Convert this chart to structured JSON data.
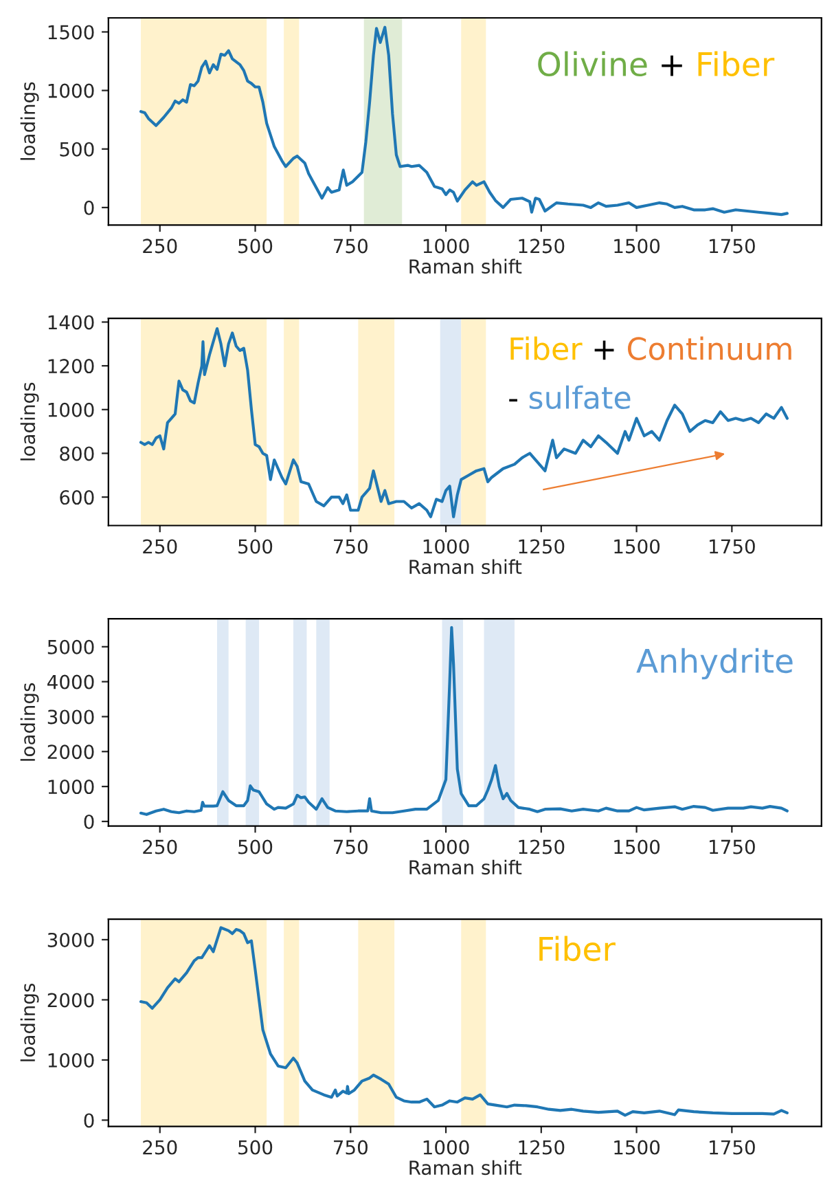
{
  "chart_data": [
    {
      "type": "line",
      "xlabel": "Raman shift",
      "ylabel": "loadings",
      "xlim": [
        115,
        1985
      ],
      "xticks": [
        250,
        500,
        750,
        1000,
        1250,
        1500,
        1750
      ],
      "ylim": [
        -150,
        1620
      ],
      "yticks": [
        0,
        500,
        1000,
        1500
      ],
      "grid": false,
      "legend": false,
      "annotations": [
        "Olivine",
        "+",
        "Fiber"
      ],
      "bands": [
        {
          "axis": "x",
          "from": 200,
          "to": 530,
          "color": "#fff2cc"
        },
        {
          "axis": "x",
          "from": 575,
          "to": 615,
          "color": "#fff2cc"
        },
        {
          "axis": "x",
          "from": 785,
          "to": 885,
          "color": "#e0ecd6"
        },
        {
          "axis": "x",
          "from": 1040,
          "to": 1105,
          "color": "#fff2cc"
        }
      ],
      "series": [
        {
          "color": "#1f77b4",
          "x": [
            200,
            210,
            220,
            240,
            260,
            280,
            290,
            300,
            310,
            320,
            330,
            340,
            350,
            360,
            370,
            380,
            390,
            400,
            410,
            420,
            430,
            440,
            460,
            470,
            480,
            490,
            500,
            510,
            520,
            530,
            550,
            570,
            580,
            600,
            610,
            630,
            640,
            650,
            675,
            690,
            700,
            720,
            731,
            740,
            755,
            780,
            790,
            800,
            810,
            818,
            828,
            840,
            850,
            860,
            870,
            880,
            900,
            910,
            930,
            950,
            970,
            990,
            1000,
            1010,
            1020,
            1030,
            1050,
            1070,
            1080,
            1100,
            1115,
            1130,
            1150,
            1170,
            1200,
            1220,
            1225,
            1235,
            1245,
            1260,
            1290,
            1320,
            1360,
            1380,
            1400,
            1420,
            1450,
            1480,
            1500,
            1530,
            1560,
            1580,
            1600,
            1620,
            1650,
            1680,
            1700,
            1730,
            1760,
            1790,
            1820,
            1850,
            1880,
            1895
          ],
          "values": [
            820,
            810,
            760,
            700,
            770,
            850,
            910,
            890,
            920,
            900,
            1050,
            1040,
            1080,
            1200,
            1250,
            1150,
            1220,
            1180,
            1310,
            1300,
            1340,
            1270,
            1220,
            1170,
            1080,
            1060,
            1030,
            1030,
            900,
            720,
            520,
            400,
            350,
            420,
            440,
            380,
            290,
            230,
            80,
            170,
            130,
            150,
            320,
            190,
            220,
            300,
            560,
            900,
            1300,
            1530,
            1410,
            1540,
            1300,
            800,
            450,
            350,
            360,
            350,
            360,
            300,
            180,
            160,
            110,
            150,
            130,
            55,
            150,
            220,
            190,
            220,
            130,
            60,
            0,
            70,
            80,
            50,
            -40,
            80,
            70,
            -30,
            40,
            30,
            20,
            0,
            40,
            10,
            20,
            40,
            0,
            20,
            40,
            30,
            0,
            10,
            -20,
            -20,
            -10,
            -40,
            -20,
            -30,
            -40,
            -50,
            -60,
            -50
          ]
        }
      ]
    },
    {
      "type": "line",
      "xlabel": "Raman shift",
      "ylabel": "loadings",
      "xlim": [
        115,
        1985
      ],
      "xticks": [
        250,
        500,
        750,
        1000,
        1250,
        1500,
        1750
      ],
      "ylim": [
        470,
        1417
      ],
      "yticks": [
        600,
        800,
        1000,
        1200,
        1400
      ],
      "grid": false,
      "legend": false,
      "annotations": [
        "Fiber",
        "+",
        "Continuum",
        "-",
        "sulfate"
      ],
      "bands": [
        {
          "axis": "x",
          "from": 200,
          "to": 530,
          "color": "#fff2cc"
        },
        {
          "axis": "x",
          "from": 575,
          "to": 615,
          "color": "#fff2cc"
        },
        {
          "axis": "x",
          "from": 770,
          "to": 865,
          "color": "#fff2cc"
        },
        {
          "axis": "x",
          "from": 985,
          "to": 1040,
          "color": "#dee9f5"
        },
        {
          "axis": "x",
          "from": 1040,
          "to": 1105,
          "color": "#fff2cc"
        }
      ],
      "series": [
        {
          "color": "#1f77b4",
          "x": [
            200,
            210,
            220,
            230,
            240,
            250,
            260,
            270,
            280,
            290,
            300,
            310,
            320,
            330,
            340,
            350,
            360,
            363,
            367,
            380,
            400,
            410,
            420,
            430,
            440,
            450,
            460,
            470,
            480,
            490,
            500,
            510,
            520,
            530,
            540,
            550,
            560,
            570,
            580,
            600,
            610,
            620,
            640,
            660,
            680,
            700,
            720,
            730,
            740,
            750,
            770,
            780,
            800,
            810,
            820,
            830,
            840,
            850,
            870,
            890,
            910,
            930,
            950,
            960,
            975,
            990,
            1000,
            1010,
            1020,
            1030,
            1040,
            1060,
            1080,
            1100,
            1110,
            1120,
            1150,
            1180,
            1200,
            1220,
            1240,
            1260,
            1280,
            1290,
            1310,
            1340,
            1360,
            1380,
            1400,
            1420,
            1450,
            1470,
            1480,
            1500,
            1520,
            1540,
            1560,
            1580,
            1600,
            1620,
            1640,
            1660,
            1680,
            1700,
            1720,
            1740,
            1760,
            1780,
            1800,
            1820,
            1840,
            1860,
            1880,
            1895
          ],
          "values": [
            850,
            840,
            850,
            840,
            870,
            880,
            820,
            940,
            960,
            980,
            1130,
            1090,
            1080,
            1040,
            1030,
            1120,
            1200,
            1310,
            1160,
            1250,
            1370,
            1300,
            1200,
            1300,
            1350,
            1290,
            1270,
            1280,
            1180,
            1000,
            840,
            830,
            800,
            790,
            680,
            770,
            730,
            690,
            660,
            770,
            740,
            670,
            660,
            580,
            560,
            600,
            600,
            570,
            610,
            540,
            540,
            600,
            640,
            720,
            650,
            580,
            630,
            570,
            580,
            580,
            550,
            570,
            540,
            510,
            590,
            580,
            630,
            650,
            510,
            610,
            680,
            700,
            720,
            730,
            670,
            690,
            730,
            750,
            780,
            800,
            760,
            720,
            860,
            780,
            820,
            800,
            860,
            830,
            880,
            850,
            800,
            900,
            860,
            960,
            880,
            900,
            860,
            950,
            1020,
            980,
            900,
            930,
            950,
            940,
            990,
            950,
            960,
            950,
            960,
            940,
            980,
            960,
            1010,
            960
          ]
        }
      ]
    },
    {
      "type": "line",
      "xlabel": "Raman shift",
      "ylabel": "loadings",
      "xlim": [
        115,
        1985
      ],
      "xticks": [
        250,
        500,
        750,
        1000,
        1250,
        1500,
        1750
      ],
      "ylim": [
        -130,
        5800
      ],
      "yticks": [
        0,
        1000,
        2000,
        3000,
        4000,
        5000
      ],
      "grid": false,
      "legend": false,
      "annotations": [
        "Anhydrite"
      ],
      "bands": [
        {
          "axis": "x",
          "from": 400,
          "to": 430,
          "color": "#dee9f5"
        },
        {
          "axis": "x",
          "from": 475,
          "to": 510,
          "color": "#dee9f5"
        },
        {
          "axis": "x",
          "from": 600,
          "to": 635,
          "color": "#dee9f5"
        },
        {
          "axis": "x",
          "from": 660,
          "to": 695,
          "color": "#dee9f5"
        },
        {
          "axis": "x",
          "from": 990,
          "to": 1045,
          "color": "#dee9f5"
        },
        {
          "axis": "x",
          "from": 1100,
          "to": 1180,
          "color": "#dee9f5"
        }
      ],
      "series": [
        {
          "color": "#1f77b4",
          "x": [
            200,
            215,
            240,
            260,
            280,
            300,
            320,
            340,
            358,
            362,
            366,
            390,
            400,
            415,
            430,
            450,
            470,
            480,
            487,
            495,
            510,
            530,
            550,
            560,
            580,
            600,
            610,
            620,
            630,
            640,
            660,
            675,
            690,
            710,
            740,
            770,
            795,
            800,
            805,
            830,
            860,
            890,
            920,
            950,
            980,
            1000,
            1010,
            1015,
            1020,
            1030,
            1040,
            1060,
            1080,
            1100,
            1110,
            1120,
            1130,
            1140,
            1150,
            1160,
            1170,
            1190,
            1220,
            1240,
            1260,
            1300,
            1330,
            1360,
            1400,
            1420,
            1450,
            1480,
            1500,
            1520,
            1560,
            1600,
            1620,
            1650,
            1680,
            1700,
            1740,
            1780,
            1800,
            1830,
            1850,
            1880,
            1895
          ],
          "values": [
            240,
            200,
            300,
            350,
            280,
            250,
            300,
            280,
            320,
            550,
            440,
            440,
            450,
            850,
            600,
            450,
            450,
            600,
            1020,
            900,
            850,
            500,
            350,
            400,
            380,
            500,
            750,
            680,
            700,
            550,
            350,
            650,
            400,
            300,
            280,
            300,
            300,
            650,
            300,
            250,
            250,
            300,
            350,
            350,
            600,
            1200,
            4000,
            5550,
            4500,
            1500,
            800,
            450,
            450,
            650,
            900,
            1200,
            1600,
            1000,
            650,
            800,
            600,
            400,
            350,
            280,
            350,
            360,
            300,
            350,
            300,
            380,
            300,
            300,
            400,
            330,
            380,
            420,
            350,
            430,
            400,
            320,
            380,
            380,
            420,
            380,
            430,
            380,
            300
          ]
        }
      ]
    },
    {
      "type": "line",
      "xlabel": "Raman shift",
      "ylabel": "loadings",
      "xlim": [
        115,
        1985
      ],
      "xticks": [
        250,
        500,
        750,
        1000,
        1250,
        1500,
        1750
      ],
      "ylim": [
        -105,
        3340
      ],
      "yticks": [
        0,
        1000,
        2000,
        3000
      ],
      "grid": false,
      "legend": false,
      "annotations": [
        "Fiber"
      ],
      "bands": [
        {
          "axis": "x",
          "from": 200,
          "to": 530,
          "color": "#fff2cc"
        },
        {
          "axis": "x",
          "from": 575,
          "to": 615,
          "color": "#fff2cc"
        },
        {
          "axis": "x",
          "from": 770,
          "to": 865,
          "color": "#fff2cc"
        },
        {
          "axis": "x",
          "from": 1040,
          "to": 1105,
          "color": "#fff2cc"
        }
      ],
      "series": [
        {
          "color": "#1f77b4",
          "x": [
            200,
            215,
            230,
            250,
            270,
            290,
            300,
            320,
            340,
            350,
            360,
            370,
            380,
            390,
            400,
            410,
            430,
            440,
            450,
            460,
            470,
            480,
            490,
            500,
            510,
            520,
            540,
            560,
            580,
            600,
            610,
            630,
            650,
            680,
            700,
            710,
            715,
            730,
            740,
            742,
            745,
            760,
            780,
            800,
            810,
            830,
            850,
            870,
            890,
            910,
            930,
            950,
            970,
            990,
            1010,
            1030,
            1050,
            1070,
            1090,
            1110,
            1130,
            1160,
            1180,
            1210,
            1240,
            1270,
            1300,
            1330,
            1360,
            1400,
            1450,
            1470,
            1490,
            1520,
            1560,
            1600,
            1610,
            1650,
            1700,
            1750,
            1800,
            1830,
            1860,
            1880,
            1895
          ],
          "values": [
            1970,
            1950,
            1860,
            2000,
            2200,
            2350,
            2300,
            2450,
            2650,
            2700,
            2700,
            2800,
            2900,
            2800,
            3000,
            3200,
            3150,
            3100,
            3170,
            3150,
            3100,
            2950,
            2980,
            2500,
            2000,
            1500,
            1100,
            900,
            870,
            1030,
            950,
            650,
            500,
            420,
            380,
            500,
            400,
            480,
            450,
            560,
            440,
            500,
            650,
            700,
            750,
            680,
            600,
            380,
            320,
            300,
            300,
            350,
            220,
            250,
            320,
            300,
            370,
            350,
            420,
            270,
            250,
            220,
            250,
            240,
            220,
            180,
            160,
            180,
            150,
            130,
            150,
            80,
            140,
            120,
            150,
            90,
            170,
            140,
            120,
            110,
            110,
            110,
            100,
            160,
            120
          ]
        }
      ]
    }
  ]
}
